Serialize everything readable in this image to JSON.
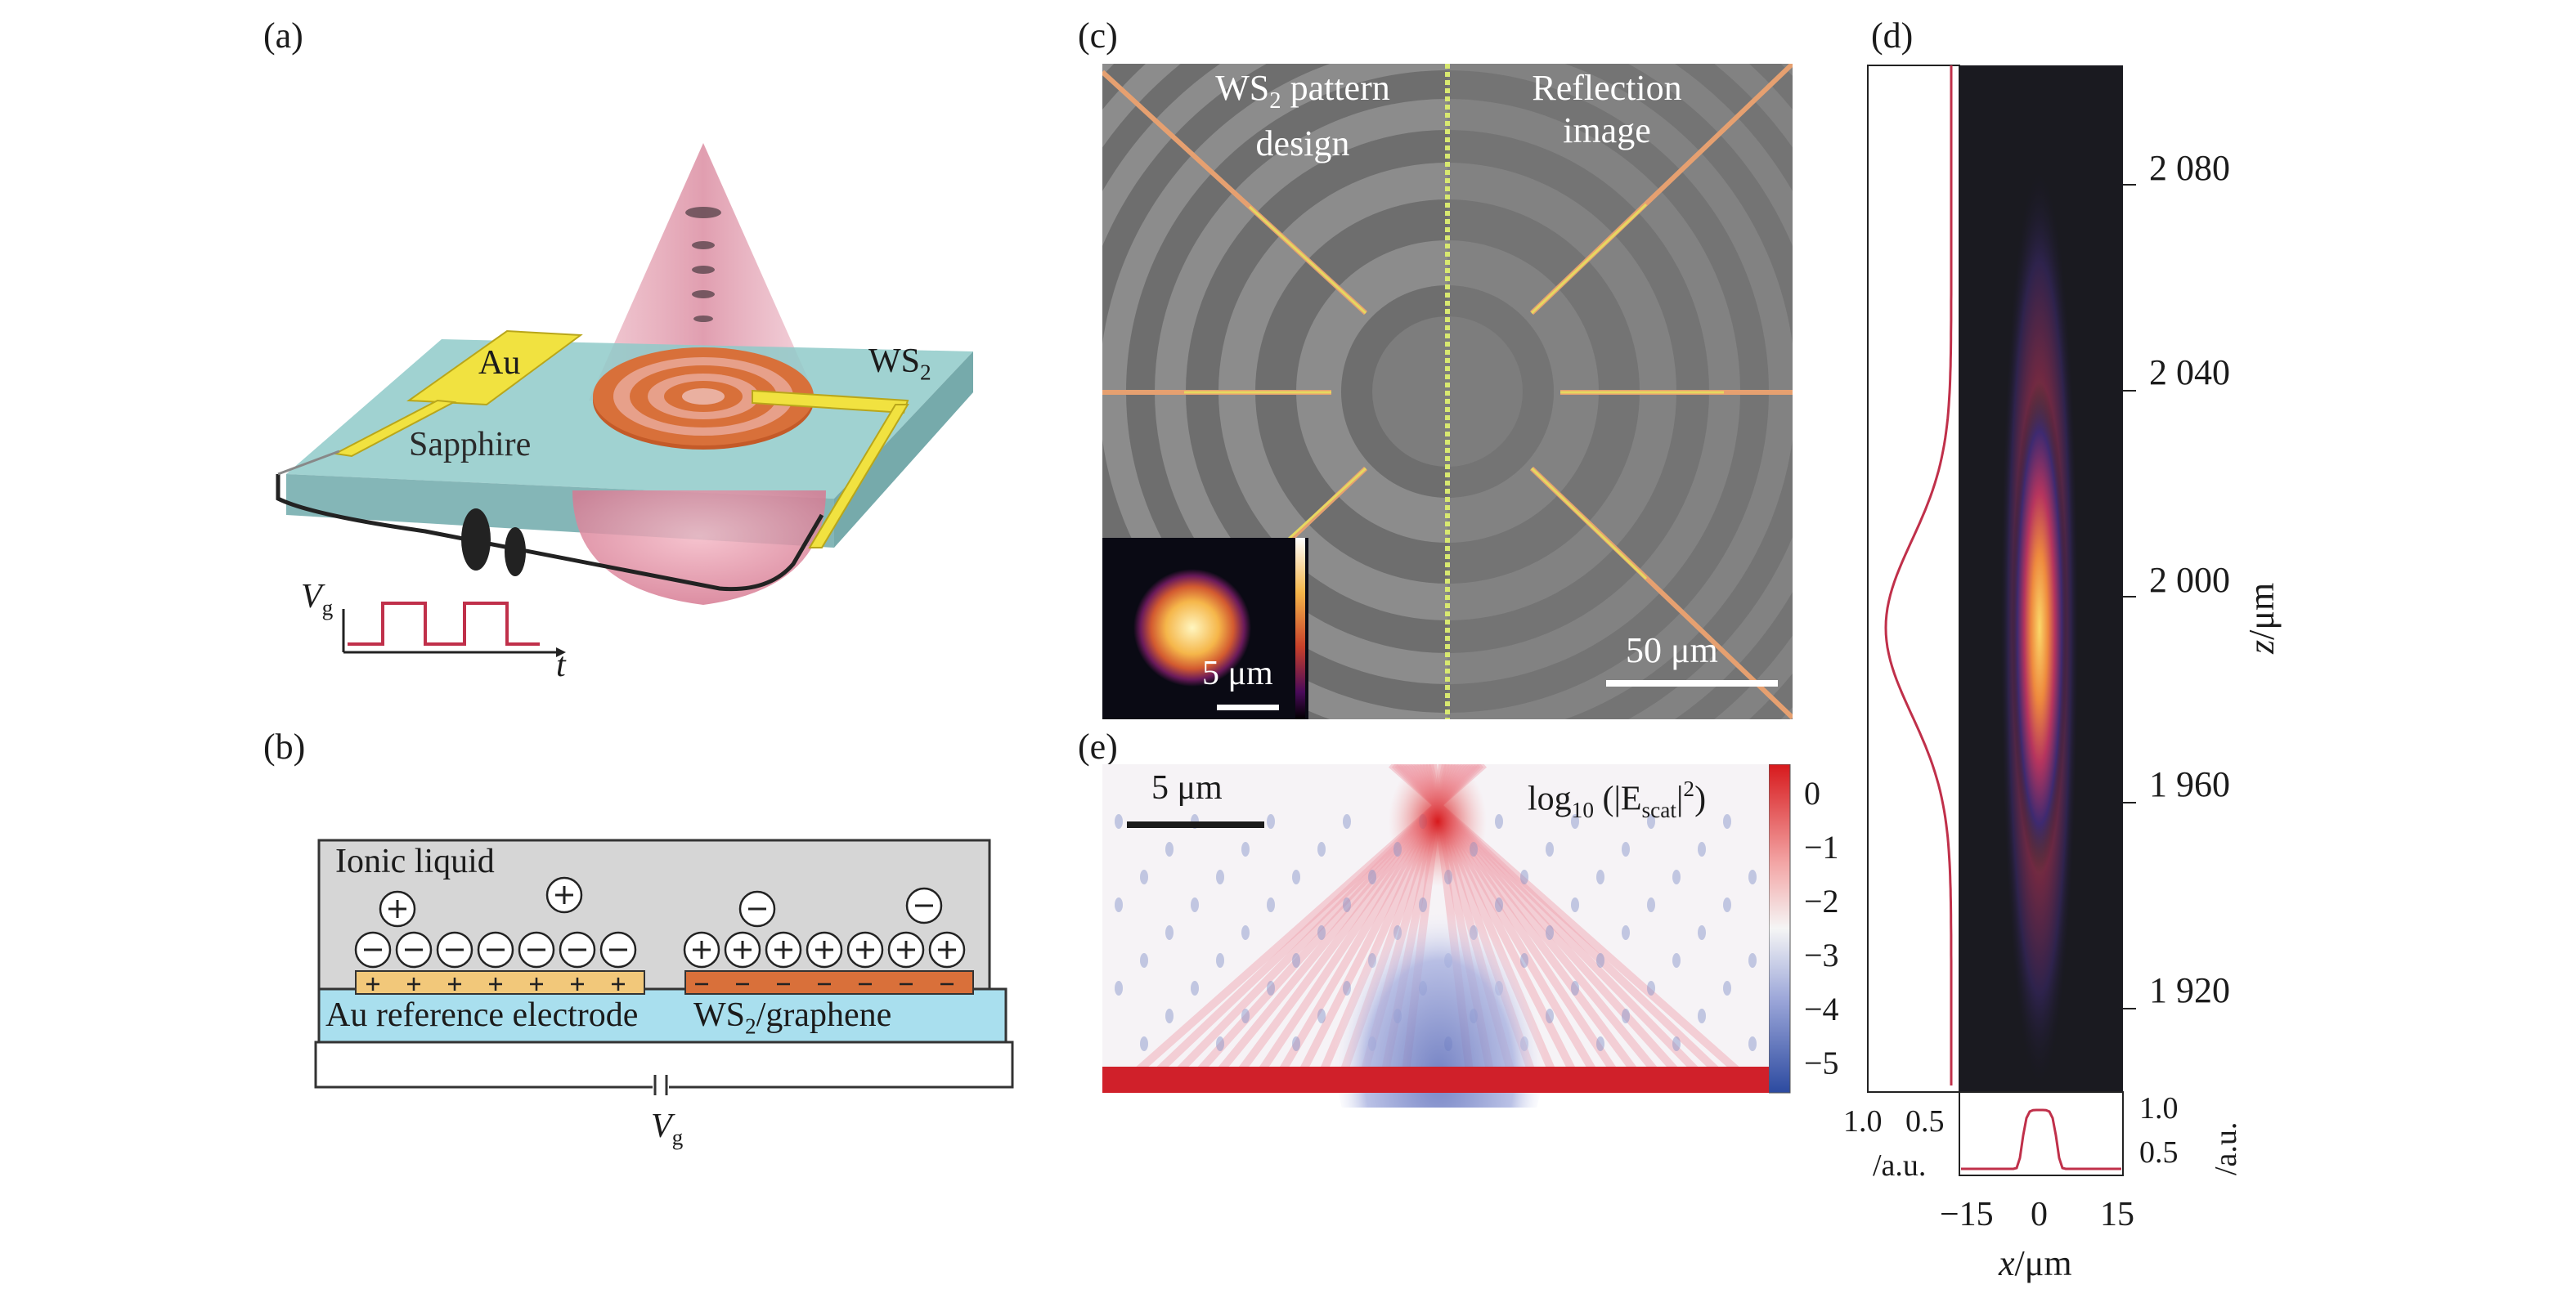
{
  "panels": {
    "a": {
      "label": "(a)",
      "au": "Au",
      "ws2_main": "WS",
      "ws2_sub": "2",
      "sapphire": "Sapphire",
      "vg_main": "V",
      "vg_sub": "g",
      "t": "t"
    },
    "b": {
      "label": "(b)",
      "ionic_liquid": "Ionic liquid",
      "electrode_left": "Au reference electrode",
      "electrode_right_main": "WS",
      "electrode_right_sub": "2",
      "electrode_right_rest": "/graphene",
      "vg_main": "V",
      "vg_sub": "g"
    },
    "c": {
      "label": "(c)",
      "left_title_1_main": "WS",
      "left_title_1_sub": "2",
      "left_title_1_rest": " pattern",
      "left_title_2": "design",
      "right_title_1": "Reflection",
      "right_title_2": "image",
      "scalebar": "50 μm",
      "inset_scalebar": "5 μm"
    },
    "d": {
      "label": "(d)",
      "z_ticks": [
        "2 080",
        "2 040",
        "2 000",
        "1 960",
        "1 920"
      ],
      "z_axis_label": "z/μm",
      "x_ticks": [
        "−15",
        "0",
        "15"
      ],
      "x_axis_label": "x/μm",
      "profile_ticks": [
        "1.0",
        "0.5"
      ],
      "profile_unit": "/a.u.",
      "right_ticks": [
        "1.0",
        "0.5"
      ],
      "right_unit": "/a.u."
    },
    "e": {
      "label": "(e)",
      "scalebar": "5 μm",
      "formula_prefix": "log",
      "formula_sub": "10",
      "formula_mid": " (|E",
      "formula_sub2": "scat",
      "formula_end": "|",
      "formula_sup": "2",
      "formula_close": ")",
      "colorbar_ticks": [
        "0",
        "−1",
        "−2",
        "−3",
        "−4",
        "−5"
      ]
    }
  },
  "colors": {
    "gold": "#e8d640",
    "ws2_orange": "#c8602a",
    "sapphire": "#9fd3d2",
    "cone_pink": "#e8a0b0",
    "profile_line": "#c0304a",
    "colorbar_top": "#d7191c",
    "colorbar_bottom": "#2c4aa0"
  }
}
